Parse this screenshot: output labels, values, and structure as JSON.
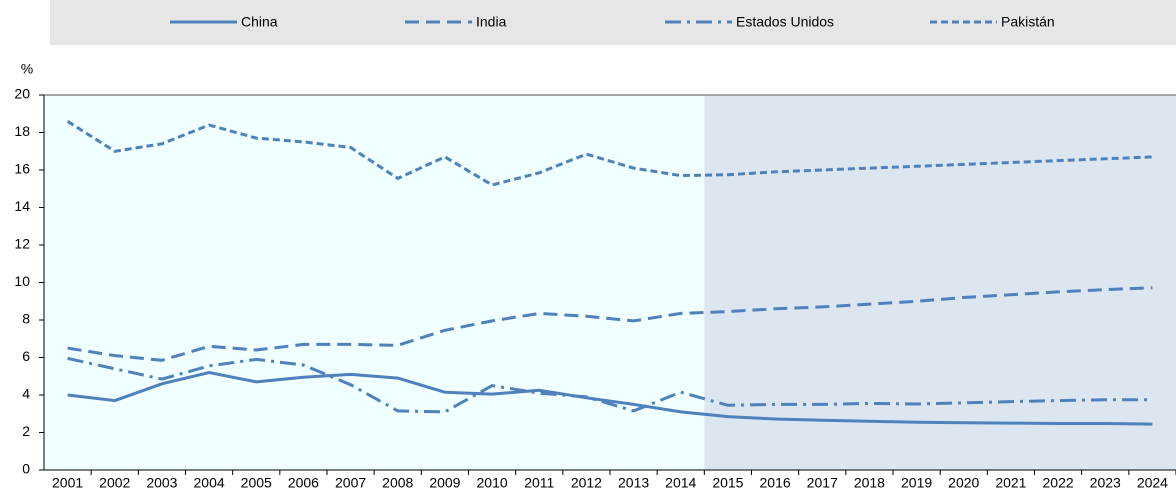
{
  "chart_data": {
    "type": "line",
    "y_unit": "%",
    "categories": [
      "2001",
      "2002",
      "2003",
      "2004",
      "2005",
      "2006",
      "2007",
      "2008",
      "2009",
      "2010",
      "2011",
      "2012",
      "2013",
      "2014",
      "2015",
      "2016",
      "2017",
      "2018",
      "2019",
      "2020",
      "2021",
      "2022",
      "2023",
      "2024"
    ],
    "series": [
      {
        "name": "China",
        "color": "#4f81bd",
        "dash": "solid",
        "values": [
          4.0,
          3.7,
          4.6,
          5.2,
          4.7,
          4.95,
          5.1,
          4.9,
          4.15,
          4.05,
          4.25,
          3.85,
          3.5,
          3.1,
          2.85,
          2.72,
          2.65,
          2.6,
          2.55,
          2.52,
          2.5,
          2.48,
          2.48,
          2.45
        ]
      },
      {
        "name": "India",
        "color": "#4f81bd",
        "dash": "dashed",
        "values": [
          6.5,
          6.1,
          5.85,
          6.6,
          6.4,
          6.7,
          6.7,
          6.65,
          7.45,
          7.95,
          8.35,
          8.2,
          7.95,
          8.35,
          8.45,
          8.6,
          8.7,
          8.85,
          9.0,
          9.2,
          9.35,
          9.5,
          9.62,
          9.72
        ]
      },
      {
        "name": "Estados Unidos",
        "color": "#4f81bd",
        "dash": "dashdot",
        "values": [
          5.95,
          5.4,
          4.85,
          5.55,
          5.9,
          5.6,
          4.55,
          3.15,
          3.1,
          4.5,
          4.1,
          3.9,
          3.15,
          4.15,
          3.45,
          3.5,
          3.5,
          3.55,
          3.52,
          3.58,
          3.65,
          3.7,
          3.75,
          3.75
        ]
      },
      {
        "name": "Pakistán",
        "color": "#4f81bd",
        "dash": "dotted",
        "values": [
          18.6,
          17.0,
          17.4,
          18.4,
          17.7,
          17.5,
          17.2,
          15.55,
          16.7,
          15.2,
          15.85,
          16.85,
          16.1,
          15.7,
          15.75,
          15.9,
          16.0,
          16.1,
          16.2,
          16.3,
          16.4,
          16.5,
          16.6,
          16.7
        ]
      }
    ],
    "ylim": [
      0,
      20
    ],
    "yticks": [
      0,
      2,
      4,
      6,
      8,
      10,
      12,
      14,
      16,
      18,
      20
    ],
    "shaded_from": "2015",
    "legend": "top"
  }
}
